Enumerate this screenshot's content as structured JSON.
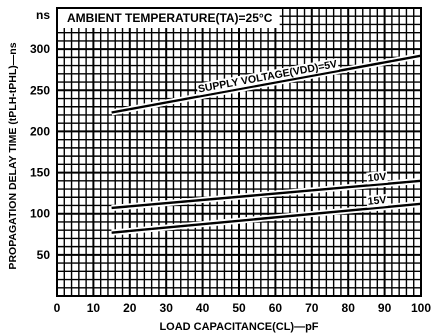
{
  "chart_data": {
    "type": "line",
    "title": "AMBIENT  TEMPERATURE(TA)=25°C",
    "xlabel": "LOAD  CAPACITANCE(CL)—pF",
    "ylabel": "PROPAGATION  DELAY  TIME  (tPLH-tPHL)—ns",
    "y_unit_label": "ns",
    "xlim": [
      0,
      100
    ],
    "ylim": [
      0,
      350
    ],
    "x_ticks": [
      0,
      10,
      20,
      30,
      40,
      50,
      60,
      70,
      80,
      90,
      100
    ],
    "y_ticks": [
      50,
      100,
      150,
      200,
      250,
      300
    ],
    "grid": true,
    "series": [
      {
        "name": "SUPPLY  VOLTAGE(VDD)=5V",
        "x": [
          15,
          100
        ],
        "y": [
          223,
          292
        ]
      },
      {
        "name": "10V",
        "x": [
          15,
          100
        ],
        "y": [
          107,
          140
        ]
      },
      {
        "name": "15V",
        "x": [
          15,
          100
        ],
        "y": [
          77,
          112
        ]
      }
    ]
  }
}
